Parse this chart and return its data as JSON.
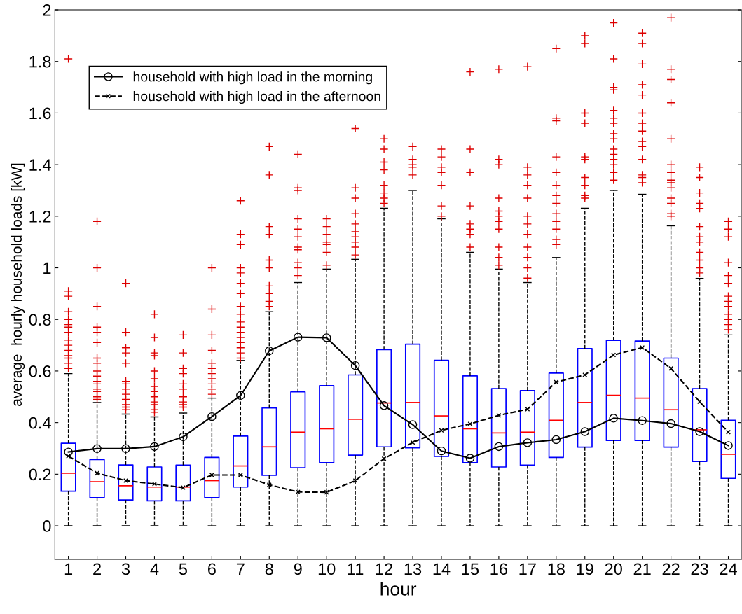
{
  "chart_data": {
    "type": "box",
    "xlabel": "hour",
    "ylabel": "average  hourly household loads [kW]",
    "categories": [
      "1",
      "2",
      "3",
      "4",
      "5",
      "6",
      "7",
      "8",
      "9",
      "10",
      "11",
      "12",
      "13",
      "14",
      "15",
      "16",
      "17",
      "18",
      "19",
      "20",
      "21",
      "22",
      "23",
      "24"
    ],
    "color": "#0000ff",
    "boxes": [
      {
        "low": 0,
        "q1": 0.134,
        "median": 0.204,
        "q3": 0.32,
        "high": 0.59,
        "outliers": [
          1.81,
          0.91,
          0.89,
          0.83,
          0.8,
          0.78,
          0.77,
          0.75,
          0.72,
          0.7,
          0.68,
          0.66,
          0.65,
          0.63,
          0.61
        ]
      },
      {
        "low": 0,
        "q1": 0.109,
        "median": 0.171,
        "q3": 0.257,
        "high": 0.478,
        "outliers": [
          1.18,
          1.0,
          0.85,
          0.77,
          0.75,
          0.71,
          0.65,
          0.63,
          0.6,
          0.58,
          0.56,
          0.55,
          0.53,
          0.52,
          0.5,
          0.49
        ]
      },
      {
        "low": 0,
        "q1": 0.1,
        "median": 0.155,
        "q3": 0.236,
        "high": 0.433,
        "outliers": [
          0.94,
          0.75,
          0.69,
          0.67,
          0.63,
          0.56,
          0.55,
          0.53,
          0.51,
          0.49,
          0.47,
          0.46,
          0.45
        ]
      },
      {
        "low": 0,
        "q1": 0.097,
        "median": 0.15,
        "q3": 0.228,
        "high": 0.422,
        "outliers": [
          0.82,
          0.73,
          0.67,
          0.66,
          0.6,
          0.57,
          0.54,
          0.52,
          0.5,
          0.48,
          0.47,
          0.45,
          0.44
        ]
      },
      {
        "low": 0,
        "q1": 0.097,
        "median": 0.15,
        "q3": 0.235,
        "high": 0.437,
        "outliers": [
          0.74,
          0.67,
          0.61,
          0.59,
          0.55,
          0.53,
          0.5,
          0.48,
          0.47,
          0.46
        ]
      },
      {
        "low": 0,
        "q1": 0.109,
        "median": 0.175,
        "q3": 0.265,
        "high": 0.495,
        "outliers": [
          1.0,
          0.84,
          0.74,
          0.68,
          0.63,
          0.61,
          0.59,
          0.57,
          0.55,
          0.53,
          0.51
        ]
      },
      {
        "low": 0,
        "q1": 0.15,
        "median": 0.232,
        "q3": 0.348,
        "high": 0.641,
        "outliers": [
          1.26,
          1.13,
          1.09,
          1.0,
          0.98,
          0.94,
          0.9,
          0.85,
          0.82,
          0.79,
          0.77,
          0.75,
          0.73,
          0.71,
          0.69,
          0.67,
          0.65
        ]
      },
      {
        "low": 0,
        "q1": 0.196,
        "median": 0.306,
        "q3": 0.457,
        "high": 0.83,
        "outliers": [
          1.47,
          1.36,
          1.16,
          1.13,
          1.03,
          1.0,
          0.93,
          0.9,
          0.87,
          0.85
        ]
      },
      {
        "low": 0,
        "q1": 0.225,
        "median": 0.363,
        "q3": 0.519,
        "high": 0.943,
        "outliers": [
          1.44,
          1.31,
          1.3,
          1.19,
          1.15,
          1.12,
          1.08,
          1.07,
          1.02,
          1.0,
          0.97
        ]
      },
      {
        "low": 0,
        "q1": 0.245,
        "median": 0.376,
        "q3": 0.543,
        "high": 0.995,
        "outliers": [
          1.19,
          1.16,
          1.13,
          1.1,
          1.09,
          1.06,
          1.01
        ]
      },
      {
        "low": 0,
        "q1": 0.274,
        "median": 0.413,
        "q3": 0.585,
        "high": 1.033,
        "outliers": [
          1.54,
          1.31,
          1.27,
          1.21,
          1.17,
          1.14,
          1.12,
          1.1,
          1.08,
          1.05
        ]
      },
      {
        "low": 0,
        "q1": 0.306,
        "median": 0.476,
        "q3": 0.683,
        "high": 1.231,
        "outliers": [
          1.5,
          1.46,
          1.41,
          1.38,
          1.32,
          1.29,
          1.27,
          1.25
        ]
      },
      {
        "low": 0,
        "q1": 0.302,
        "median": 0.478,
        "q3": 0.704,
        "high": 1.3,
        "outliers": [
          1.47,
          1.42,
          1.4,
          1.39,
          1.36
        ]
      },
      {
        "low": 0,
        "q1": 0.269,
        "median": 0.426,
        "q3": 0.642,
        "high": 1.19,
        "outliers": [
          1.46,
          1.43,
          1.39,
          1.37,
          1.32,
          1.24,
          1.2
        ]
      },
      {
        "low": 0,
        "q1": 0.245,
        "median": 0.376,
        "q3": 0.581,
        "high": 1.06,
        "outliers": [
          1.76,
          1.46,
          1.37,
          1.24,
          1.17,
          1.15,
          1.13,
          1.08
        ]
      },
      {
        "low": 0,
        "q1": 0.228,
        "median": 0.36,
        "q3": 0.532,
        "high": 0.995,
        "outliers": [
          1.77,
          1.42,
          1.4,
          1.27,
          1.22,
          1.2,
          1.18,
          1.15,
          1.08,
          1.04,
          1.01
        ]
      },
      {
        "low": 0,
        "q1": 0.235,
        "median": 0.363,
        "q3": 0.524,
        "high": 0.943,
        "outliers": [
          1.78,
          1.39,
          1.36,
          1.32,
          1.27,
          1.2,
          1.17,
          1.13,
          1.08,
          1.04,
          1.0,
          0.96
        ]
      },
      {
        "low": 0,
        "q1": 0.265,
        "median": 0.409,
        "q3": 0.592,
        "high": 1.04,
        "outliers": [
          1.85,
          1.58,
          1.57,
          1.43,
          1.37,
          1.32,
          1.28,
          1.25,
          1.21,
          1.18,
          1.15,
          1.11,
          1.09
        ]
      },
      {
        "low": 0,
        "q1": 0.305,
        "median": 0.478,
        "q3": 0.687,
        "high": 1.231,
        "outliers": [
          1.9,
          1.87,
          1.6,
          1.56,
          1.43,
          1.42,
          1.35,
          1.32,
          1.28,
          1.27
        ]
      },
      {
        "low": 0,
        "q1": 0.331,
        "median": 0.506,
        "q3": 0.719,
        "high": 1.3,
        "outliers": [
          1.95,
          1.81,
          1.7,
          1.69,
          1.61,
          1.58,
          1.56,
          1.52,
          1.5,
          1.46,
          1.44,
          1.42,
          1.4,
          1.37,
          1.34
        ]
      },
      {
        "low": 0,
        "q1": 0.331,
        "median": 0.495,
        "q3": 0.716,
        "high": 1.285,
        "outliers": [
          1.91,
          1.87,
          1.79,
          1.71,
          1.67,
          1.6,
          1.56,
          1.53,
          1.49,
          1.47,
          1.42,
          1.36,
          1.35,
          1.33
        ]
      },
      {
        "low": 0,
        "q1": 0.305,
        "median": 0.45,
        "q3": 0.65,
        "high": 1.163,
        "outliers": [
          1.97,
          1.77,
          1.73,
          1.64,
          1.5,
          1.4,
          1.37,
          1.34,
          1.33,
          1.31,
          1.27,
          1.25,
          1.21,
          1.2
        ]
      },
      {
        "low": 0,
        "q1": 0.249,
        "median": 0.372,
        "q3": 0.532,
        "high": 0.959,
        "outliers": [
          1.39,
          1.35,
          1.29,
          1.25,
          1.23,
          1.16,
          1.12,
          1.1,
          1.06,
          1.03,
          1.0,
          0.98
        ]
      },
      {
        "low": 0,
        "q1": 0.184,
        "median": 0.277,
        "q3": 0.409,
        "high": 0.74,
        "outliers": [
          1.18,
          1.15,
          1.12,
          1.02,
          0.97,
          0.94,
          0.89,
          0.87,
          0.85,
          0.82,
          0.8,
          0.78,
          0.76
        ]
      }
    ],
    "series": [
      {
        "name": "household with high load in the morning",
        "type": "line",
        "color": "#000000",
        "marker": "circle",
        "line_style": "solid",
        "values": [
          0.286,
          0.299,
          0.299,
          0.307,
          0.345,
          0.423,
          0.505,
          0.678,
          0.731,
          0.729,
          0.621,
          0.466,
          0.392,
          0.29,
          0.262,
          0.307,
          0.322,
          0.334,
          0.365,
          0.417,
          0.408,
          0.396,
          0.365,
          0.311
        ]
      },
      {
        "name": "household with high load in the afternoon",
        "type": "line",
        "color": "#000000",
        "marker": "cross",
        "line_style": "dashed",
        "values": [
          0.27,
          0.204,
          0.175,
          0.162,
          0.148,
          0.197,
          0.197,
          0.159,
          0.131,
          0.13,
          0.175,
          0.26,
          0.323,
          0.37,
          0.395,
          0.428,
          0.452,
          0.557,
          0.585,
          0.662,
          0.691,
          0.61,
          0.481,
          0.363
        ]
      }
    ],
    "ylim": [
      -0.13,
      2
    ],
    "yticks": [
      0,
      0.2,
      0.4,
      0.6,
      0.8,
      1,
      1.2,
      1.4,
      1.6,
      1.8,
      2
    ],
    "grid": false,
    "legend": "top left"
  }
}
